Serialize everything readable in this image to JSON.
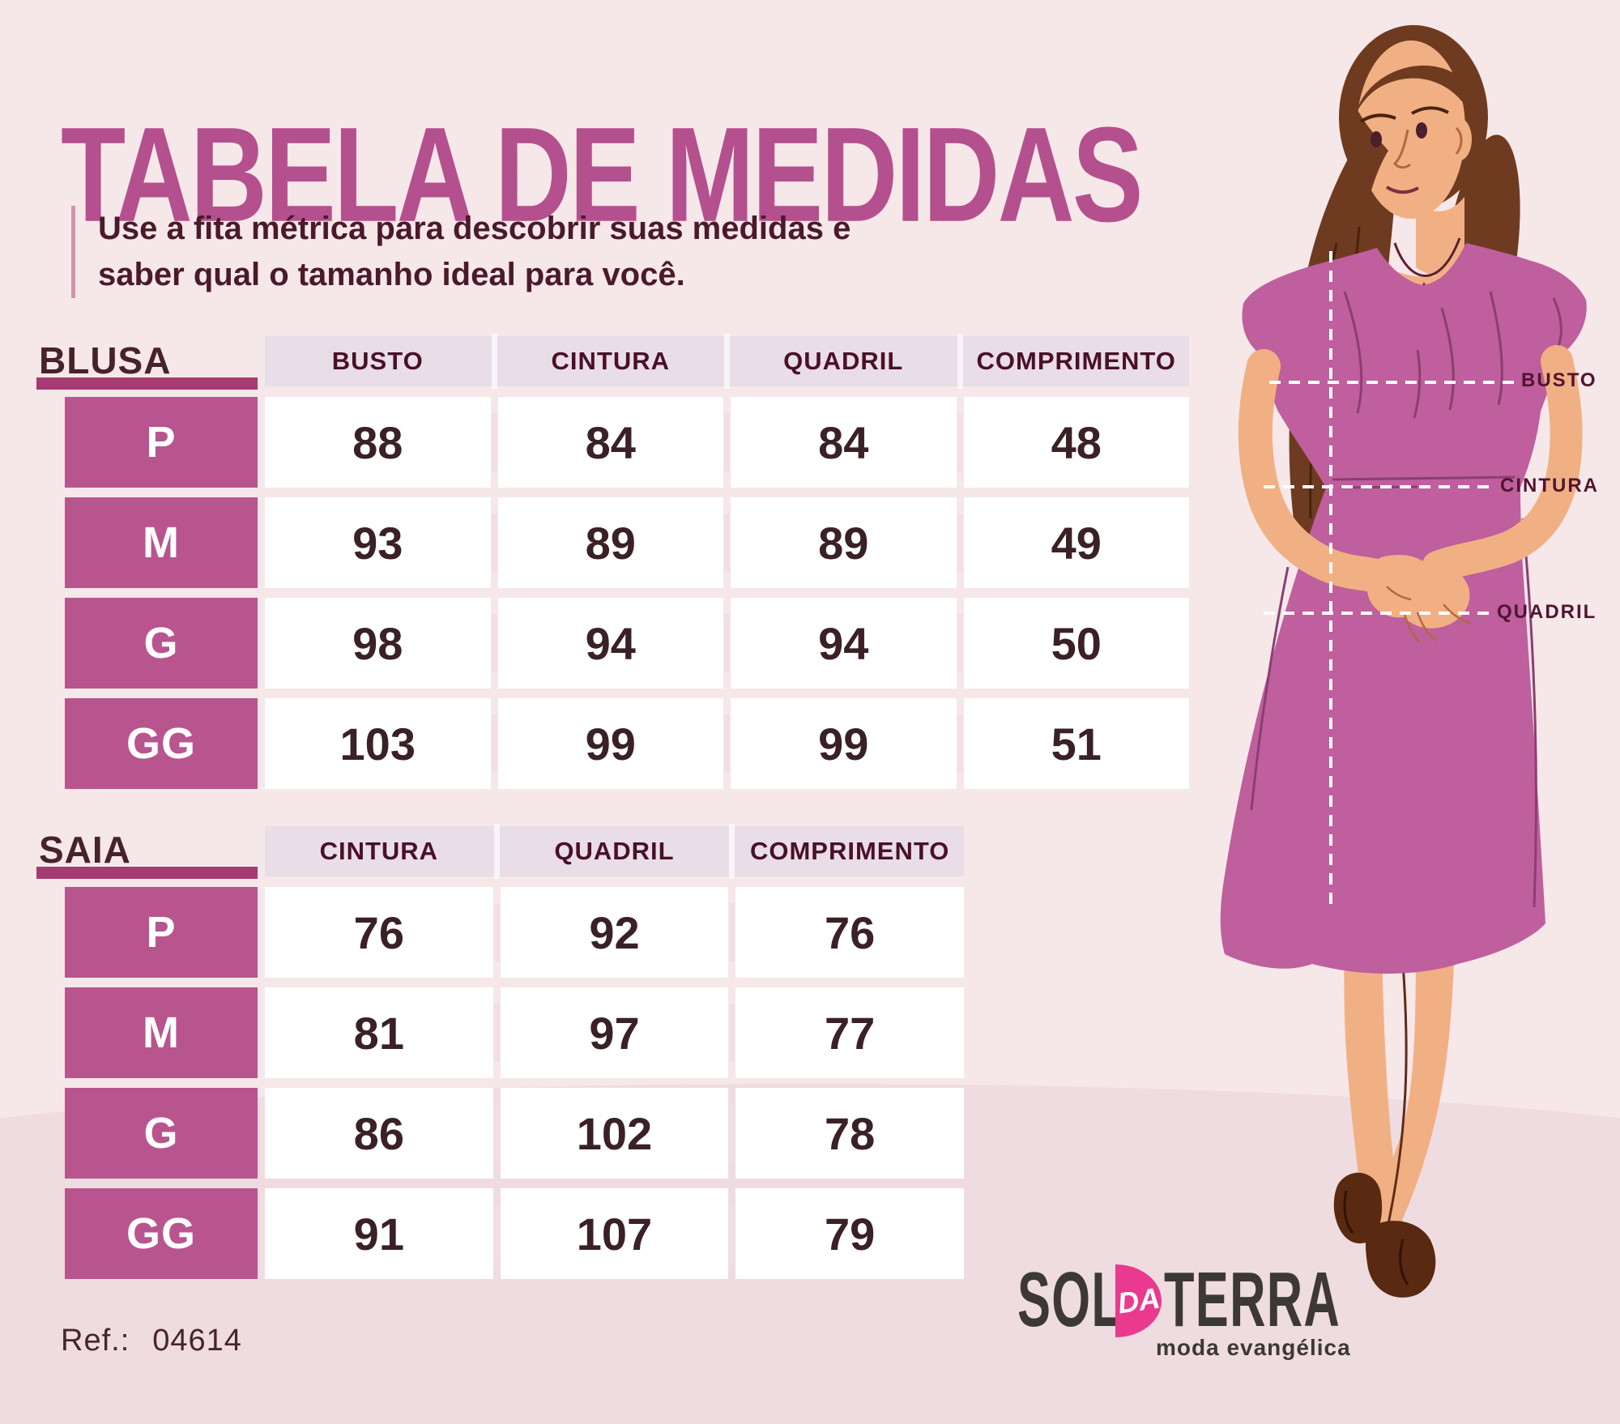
{
  "page": {
    "title": "TABELA DE MEDIDAS",
    "subtitle": "Use a fita métrica para descobrir suas medidas e saber qual o tamanho ideal para você.",
    "ref_label": "Ref.:",
    "ref_value": "04614"
  },
  "colors": {
    "background": "#f6e7e9",
    "background_bottom": "#efdce0",
    "title": "#b4508e",
    "subtitle_text": "#4a1a2b",
    "table_label": "#46232b",
    "underline_bar": "#a63b72",
    "header_bg": "#e9dee7",
    "header_text": "#4a1028",
    "size_cell": "#b8558e",
    "value_text": "#3a2125",
    "logo_pink": "#e93a8f",
    "logo_gray": "#3d3838",
    "dress": "#bf5f9d",
    "hair": "#6e3b20",
    "skin": "#f1b083"
  },
  "tables": [
    {
      "id": "blusa",
      "label": "BLUSA",
      "columns": [
        "BUSTO",
        "CINTURA",
        "QUADRIL",
        "COMPRIMENTO"
      ],
      "rows": [
        {
          "size": "P",
          "values": [
            "88",
            "84",
            "84",
            "48"
          ]
        },
        {
          "size": "M",
          "values": [
            "93",
            "89",
            "89",
            "49"
          ]
        },
        {
          "size": "G",
          "values": [
            "98",
            "94",
            "94",
            "50"
          ]
        },
        {
          "size": "GG",
          "values": [
            "103",
            "99",
            "99",
            "51"
          ]
        }
      ]
    },
    {
      "id": "saia",
      "label": "SAIA",
      "columns": [
        "CINTURA",
        "QUADRIL",
        "COMPRIMENTO"
      ],
      "rows": [
        {
          "size": "P",
          "values": [
            "76",
            "92",
            "76"
          ]
        },
        {
          "size": "M",
          "values": [
            "81",
            "97",
            "77"
          ]
        },
        {
          "size": "G",
          "values": [
            "86",
            "102",
            "78"
          ]
        },
        {
          "size": "GG",
          "values": [
            "91",
            "107",
            "79"
          ]
        }
      ]
    }
  ],
  "figure": {
    "measurement_labels": [
      "BUSTO",
      "CINTURA",
      "QUADRIL"
    ]
  },
  "logo": {
    "sol": "SOL",
    "da": "DA",
    "terra": "TERRA",
    "tagline": "moda evangélica"
  }
}
